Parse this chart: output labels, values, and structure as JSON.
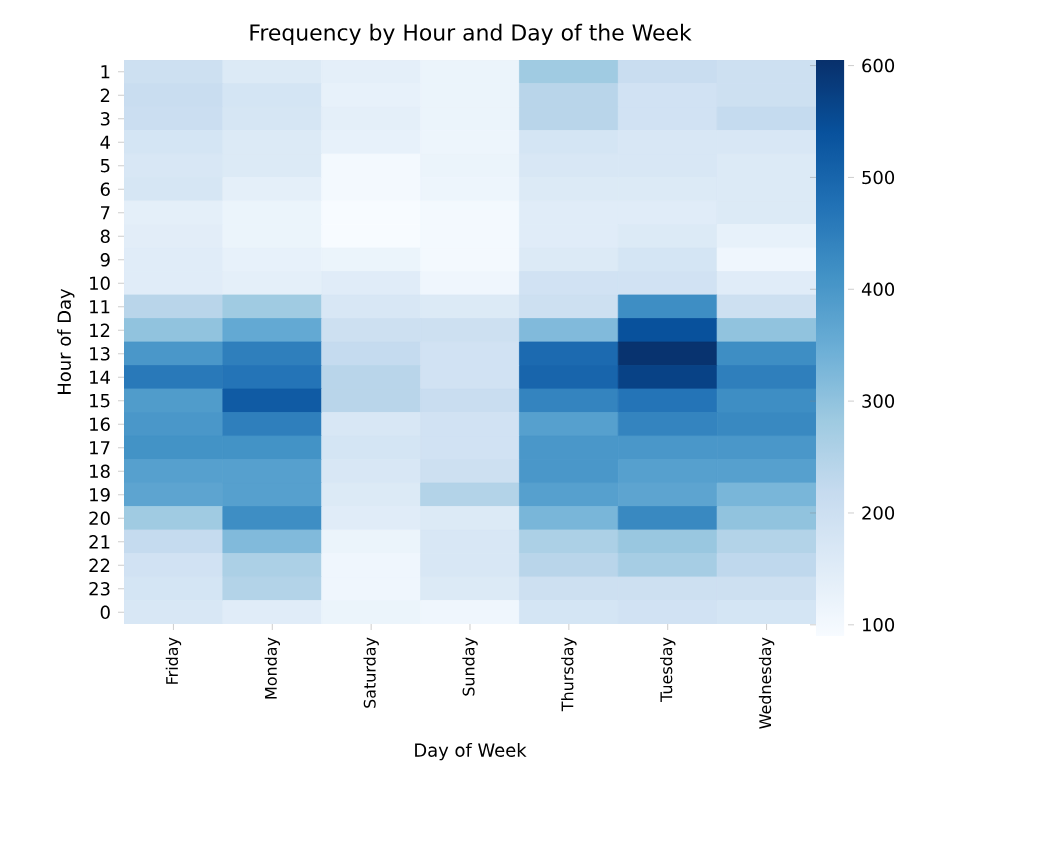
{
  "chart_data": {
    "type": "heatmap",
    "title": "Frequency by Hour and Day of the Week",
    "xlabel": "Day of Week",
    "ylabel": "Hour of Day",
    "categories": [
      "Friday",
      "Monday",
      "Saturday",
      "Sunday",
      "Thursday",
      "Tuesday",
      "Wednesday"
    ],
    "y_categories": [
      "1",
      "2",
      "3",
      "4",
      "5",
      "6",
      "7",
      "8",
      "9",
      "10",
      "11",
      "12",
      "13",
      "14",
      "15",
      "16",
      "17",
      "18",
      "19",
      "20",
      "21",
      "22",
      "23",
      "0"
    ],
    "cells": [
      [
        200,
        160,
        140,
        120,
        280,
        210,
        200
      ],
      [
        210,
        180,
        130,
        120,
        240,
        190,
        200
      ],
      [
        205,
        175,
        140,
        120,
        240,
        190,
        220
      ],
      [
        180,
        160,
        130,
        115,
        180,
        170,
        170
      ],
      [
        170,
        160,
        100,
        120,
        170,
        170,
        160
      ],
      [
        175,
        140,
        100,
        115,
        160,
        160,
        160
      ],
      [
        140,
        120,
        90,
        100,
        150,
        150,
        160
      ],
      [
        145,
        120,
        90,
        100,
        150,
        160,
        130
      ],
      [
        150,
        130,
        120,
        100,
        160,
        180,
        110
      ],
      [
        150,
        140,
        150,
        110,
        190,
        190,
        150
      ],
      [
        240,
        280,
        170,
        160,
        200,
        420,
        200
      ],
      [
        300,
        360,
        200,
        200,
        320,
        540,
        300
      ],
      [
        400,
        450,
        220,
        190,
        490,
        600,
        420
      ],
      [
        460,
        470,
        240,
        190,
        500,
        570,
        450
      ],
      [
        390,
        520,
        240,
        210,
        440,
        470,
        420
      ],
      [
        400,
        450,
        170,
        190,
        380,
        440,
        430
      ],
      [
        410,
        410,
        180,
        190,
        400,
        400,
        400
      ],
      [
        380,
        380,
        170,
        200,
        400,
        380,
        380
      ],
      [
        370,
        380,
        160,
        250,
        380,
        370,
        330
      ],
      [
        280,
        420,
        150,
        160,
        330,
        430,
        300
      ],
      [
        220,
        320,
        120,
        170,
        260,
        290,
        250
      ],
      [
        190,
        260,
        110,
        170,
        240,
        270,
        230
      ],
      [
        180,
        250,
        110,
        160,
        200,
        200,
        200
      ],
      [
        170,
        150,
        120,
        110,
        180,
        190,
        180
      ]
    ],
    "clim": [
      90,
      605
    ],
    "cticks": [
      100,
      200,
      300,
      400,
      500,
      600
    ]
  }
}
